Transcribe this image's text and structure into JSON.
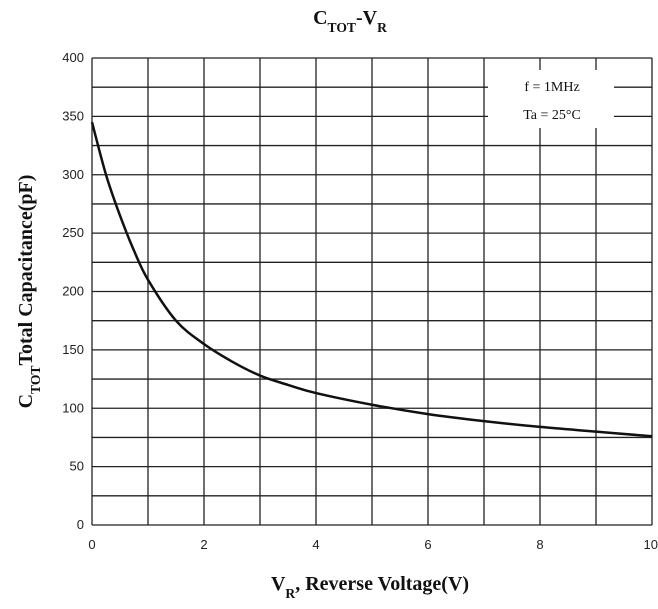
{
  "chart_data": {
    "type": "line",
    "title": [
      {
        "text": "C"
      },
      {
        "text": "TOT",
        "sub": true
      },
      {
        "text": "-V"
      },
      {
        "text": "R",
        "sub": true
      }
    ],
    "x_label": [
      {
        "text": "V"
      },
      {
        "text": "R",
        "sub": true
      },
      {
        "text": ", Reverse Voltage(V)"
      }
    ],
    "y_label": [
      {
        "text": "C"
      },
      {
        "text": "TOT",
        "sub": true
      },
      {
        "text": "Total Capacitance(pF)"
      }
    ],
    "annotations": [
      "f = 1MHz",
      "Ta = 25°C"
    ],
    "x": [
      0,
      0.25,
      0.5,
      0.75,
      1,
      1.5,
      2,
      2.5,
      3,
      3.5,
      4,
      5,
      6,
      7,
      8,
      9,
      10
    ],
    "series": [
      {
        "color": "#111111",
        "values": [
          345,
          300,
          265,
          235,
          210,
          175,
          155,
          140,
          128,
          120,
          113,
          103,
          95,
          89,
          84,
          80,
          76
        ]
      }
    ],
    "xlim": [
      0,
      10
    ],
    "xticks": [
      0,
      2,
      4,
      6,
      8,
      10
    ],
    "ylim": [
      0,
      400
    ],
    "yticks": [
      0,
      50,
      100,
      150,
      200,
      250,
      300,
      350,
      400
    ],
    "xgrid": [
      0,
      1,
      2,
      3,
      4,
      5,
      6,
      7,
      8,
      9,
      10
    ],
    "ygrid": [
      0,
      25,
      50,
      75,
      100,
      125,
      150,
      175,
      200,
      225,
      250,
      275,
      300,
      325,
      350,
      375,
      400
    ],
    "grid": true
  }
}
